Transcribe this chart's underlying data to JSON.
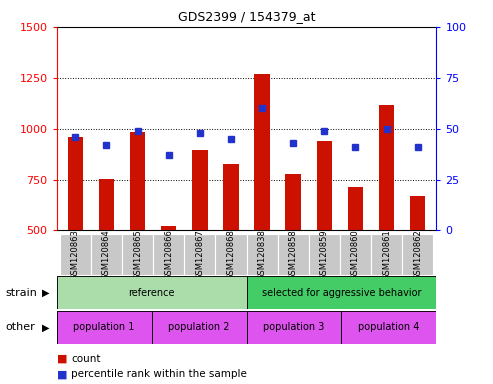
{
  "title": "GDS2399 / 154379_at",
  "samples": [
    "GSM120863",
    "GSM120864",
    "GSM120865",
    "GSM120866",
    "GSM120867",
    "GSM120868",
    "GSM120838",
    "GSM120858",
    "GSM120859",
    "GSM120860",
    "GSM120861",
    "GSM120862"
  ],
  "counts": [
    960,
    755,
    985,
    520,
    895,
    825,
    1270,
    775,
    940,
    715,
    1115,
    670
  ],
  "percentiles": [
    46,
    42,
    49,
    37,
    48,
    45,
    60,
    43,
    49,
    41,
    50,
    41
  ],
  "ylim_left": [
    500,
    1500
  ],
  "ylim_right": [
    0,
    100
  ],
  "yticks_left": [
    500,
    750,
    1000,
    1250,
    1500
  ],
  "yticks_right": [
    0,
    25,
    50,
    75,
    100
  ],
  "bar_color": "#cc1100",
  "dot_color": "#2233cc",
  "strain_groups": [
    {
      "label": "reference",
      "start": 0,
      "end": 6,
      "color": "#aaddaa"
    },
    {
      "label": "selected for aggressive behavior",
      "start": 6,
      "end": 12,
      "color": "#44cc66"
    }
  ],
  "other_groups": [
    {
      "label": "population 1",
      "start": 0,
      "end": 3,
      "color": "#dd55ee"
    },
    {
      "label": "population 2",
      "start": 3,
      "end": 6,
      "color": "#dd55ee"
    },
    {
      "label": "population 3",
      "start": 6,
      "end": 9,
      "color": "#dd55ee"
    },
    {
      "label": "population 4",
      "start": 9,
      "end": 12,
      "color": "#dd55ee"
    }
  ],
  "legend_count_label": "count",
  "legend_percentile_label": "percentile rank within the sample",
  "legend_count_color": "#cc1100",
  "legend_percentile_color": "#2233cc",
  "strain_label": "strain",
  "other_label": "other"
}
